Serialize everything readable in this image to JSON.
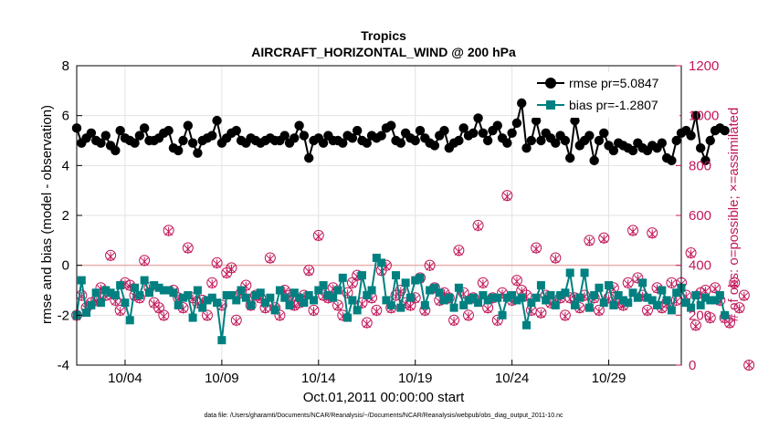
{
  "chart_data": {
    "type": "line",
    "title_line1": "Tropics",
    "title_line2": "AIRCRAFT_HORIZONTAL_WIND @ 200 hPa",
    "xlabel": "Oct.01,2011 00:00:00 start",
    "ylabel_left": "rmse and bias (model - observation)",
    "ylabel_right": "# of obs: o=possible; ×=assimilated",
    "ylim_left": [
      -4,
      8
    ],
    "ylim_right": [
      0,
      1200
    ],
    "yticks_left": [
      "-4",
      "-2",
      "0",
      "2",
      "4",
      "6",
      "8"
    ],
    "yticks_right": [
      "0",
      "200",
      "400",
      "600",
      "800",
      "1000",
      "1200"
    ],
    "xlim_days": [
      0.5,
      31.75
    ],
    "xticks": [
      {
        "day": 3,
        "label": "10/04"
      },
      {
        "day": 8,
        "label": "10/09"
      },
      {
        "day": 13,
        "label": "10/14"
      },
      {
        "day": 18,
        "label": "10/19"
      },
      {
        "day": 23,
        "label": "10/24"
      },
      {
        "day": 28,
        "label": "10/29"
      }
    ],
    "step_days": 0.25,
    "start_day": 0.5,
    "series": [
      {
        "name": "rmse",
        "legend": "rmse pr=5.0847",
        "color": "#000000",
        "axis": "left",
        "values": [
          5.5,
          4.9,
          5.1,
          5.3,
          5.0,
          4.9,
          5.2,
          4.8,
          4.6,
          5.4,
          5.1,
          5.0,
          4.9,
          5.2,
          5.5,
          5.0,
          5.0,
          5.1,
          5.3,
          5.4,
          4.7,
          4.6,
          5.0,
          5.6,
          4.9,
          4.5,
          5.0,
          5.1,
          5.2,
          5.8,
          4.9,
          5.1,
          5.3,
          5.4,
          5.0,
          4.9,
          5.1,
          5.0,
          4.9,
          5.0,
          5.1,
          5.0,
          5.0,
          5.2,
          4.9,
          5.1,
          5.6,
          5.2,
          4.3,
          5.0,
          5.1,
          4.9,
          5.2,
          5.0,
          5.0,
          4.9,
          5.2,
          5.1,
          5.4,
          5.0,
          4.9,
          5.2,
          5.1,
          5.2,
          5.5,
          5.6,
          5.0,
          4.9,
          5.3,
          5.1,
          5.0,
          5.4,
          5.1,
          4.9,
          4.8,
          5.2,
          5.4,
          4.7,
          4.9,
          5.0,
          5.5,
          5.2,
          5.3,
          5.9,
          5.3,
          5.0,
          5.4,
          5.6,
          5.1,
          4.9,
          5.3,
          5.7,
          6.5,
          4.7,
          5.0,
          5.8,
          5.0,
          5.3,
          5.1,
          4.9,
          5.2,
          5.0,
          4.3,
          5.8,
          4.8,
          5.0,
          5.2,
          4.2,
          5.0,
          5.3,
          4.8,
          4.6,
          4.9,
          4.8,
          4.7,
          4.6,
          4.9,
          4.7,
          4.6,
          4.8,
          4.7,
          4.9,
          4.3,
          4.2,
          5.0,
          5.3,
          5.4,
          5.2,
          6.0,
          4.7,
          4.2,
          5.0,
          5.4,
          5.5,
          5.4
        ]
      },
      {
        "name": "bias",
        "legend": "bias pr=-1.2807",
        "color": "#008080",
        "axis": "left",
        "values": [
          -2.0,
          -0.6,
          -1.9,
          -1.6,
          -1.1,
          -1.5,
          -1.0,
          -1.1,
          -1.2,
          -0.8,
          -1.5,
          -2.2,
          -0.9,
          -1.2,
          -0.6,
          -1.1,
          -0.8,
          -0.9,
          -1.0,
          -1.0,
          -1.1,
          -1.6,
          -1.3,
          -1.2,
          -2.1,
          -1.0,
          -1.7,
          -1.4,
          -1.3,
          -1.5,
          -3.0,
          -1.2,
          -1.2,
          -1.4,
          -1.0,
          -1.3,
          -1.6,
          -1.2,
          -1.1,
          -1.5,
          -1.3,
          -1.8,
          -1.0,
          -1.3,
          -1.6,
          -1.1,
          -1.3,
          -1.5,
          -1.2,
          -1.4,
          -1.0,
          -0.8,
          -1.2,
          -1.3,
          -1.0,
          -0.5,
          -2.1,
          -1.4,
          -1.8,
          -0.4,
          -1.2,
          -1.0,
          0.3,
          0.1,
          -1.4,
          -1.6,
          -0.4,
          -1.7,
          -0.7,
          -1.3,
          -0.6,
          -0.5,
          -1.6,
          -1.0,
          -0.9,
          -1.1,
          -1.4,
          -1.3,
          -1.7,
          -0.9,
          -1.6,
          -1.4,
          -1.3,
          -1.5,
          -1.2,
          -1.4,
          -1.3,
          -1.3,
          -2.0,
          -1.3,
          -1.2,
          -1.4,
          -1.3,
          -2.4,
          -1.5,
          -1.3,
          -0.8,
          -1.4,
          -1.2,
          -1.6,
          -1.2,
          -1.1,
          -0.3,
          -1.6,
          -1.3,
          -0.3,
          -1.7,
          -1.2,
          -0.9,
          -1.5,
          -0.8,
          -1.6,
          -1.2,
          -1.4,
          -1.5,
          -1.1,
          -1.3,
          -0.7,
          -1.3,
          -1.4,
          -1.6,
          -1.0,
          -1.4,
          -1.8,
          -1.1,
          -0.9,
          -1.5,
          -1.7,
          -1.2,
          -1.6,
          -1.3,
          -1.4,
          -1.4,
          -1.2,
          -2.0
        ]
      },
      {
        "name": "obs_possible",
        "legend": "possible",
        "color": "#c2185b",
        "axis": "right",
        "marker": "circle",
        "values": [
          200,
          280,
          230,
          250,
          260,
          310,
          280,
          440,
          260,
          220,
          330,
          320,
          280,
          270,
          420,
          310,
          250,
          230,
          200,
          540,
          300,
          270,
          230,
          470,
          270,
          250,
          260,
          200,
          330,
          410,
          240,
          370,
          390,
          180,
          290,
          320,
          240,
          280,
          270,
          230,
          430,
          230,
          200,
          300,
          280,
          240,
          250,
          280,
          380,
          220,
          520,
          280,
          270,
          310,
          240,
          200,
          290,
          330,
          360,
          250,
          170,
          270,
          220,
          380,
          400,
          230,
          280,
          300,
          250,
          240,
          270,
          350,
          220,
          400,
          310,
          260,
          290,
          270,
          180,
          460,
          290,
          200,
          270,
          560,
          330,
          230,
          270,
          180,
          290,
          680,
          260,
          340,
          300,
          280,
          220,
          470,
          210,
          280,
          250,
          430,
          270,
          200,
          270,
          270,
          230,
          280,
          500,
          270,
          220,
          510,
          270,
          310,
          250,
          240,
          330,
          540,
          350,
          280,
          220,
          530,
          310,
          230,
          250,
          330,
          260,
          330,
          280,
          450,
          160,
          290,
          300,
          190,
          310,
          260,
          190,
          170,
          330,
          230,
          280,
          0
        ]
      },
      {
        "name": "obs_assimilated",
        "legend": "assimilated",
        "color": "#c2185b",
        "axis": "right",
        "marker": "x",
        "values": [
          195,
          275,
          225,
          245,
          255,
          305,
          275,
          435,
          255,
          215,
          325,
          315,
          275,
          265,
          415,
          305,
          245,
          225,
          195,
          535,
          295,
          265,
          225,
          465,
          265,
          245,
          255,
          195,
          325,
          405,
          235,
          365,
          385,
          175,
          285,
          315,
          235,
          275,
          265,
          225,
          425,
          225,
          195,
          295,
          275,
          235,
          245,
          275,
          375,
          215,
          515,
          275,
          265,
          305,
          235,
          195,
          285,
          325,
          355,
          245,
          165,
          265,
          215,
          375,
          395,
          225,
          275,
          295,
          245,
          235,
          265,
          345,
          215,
          395,
          305,
          255,
          285,
          265,
          175,
          455,
          285,
          195,
          265,
          555,
          325,
          225,
          265,
          175,
          285,
          675,
          255,
          335,
          295,
          275,
          215,
          465,
          205,
          275,
          245,
          425,
          265,
          195,
          265,
          265,
          225,
          275,
          495,
          265,
          215,
          505,
          265,
          305,
          245,
          235,
          325,
          535,
          345,
          275,
          215,
          525,
          305,
          225,
          245,
          325,
          255,
          325,
          275,
          445,
          155,
          285,
          295,
          185,
          305,
          255,
          185,
          165,
          325,
          225,
          275,
          0
        ]
      }
    ]
  },
  "footer": "data file: /Users/gharamti/Documents/NCAR/Reanalysis/~/Documents/NCAR/Reanalysis/webpub/obs_diag_output_2011-10.nc"
}
